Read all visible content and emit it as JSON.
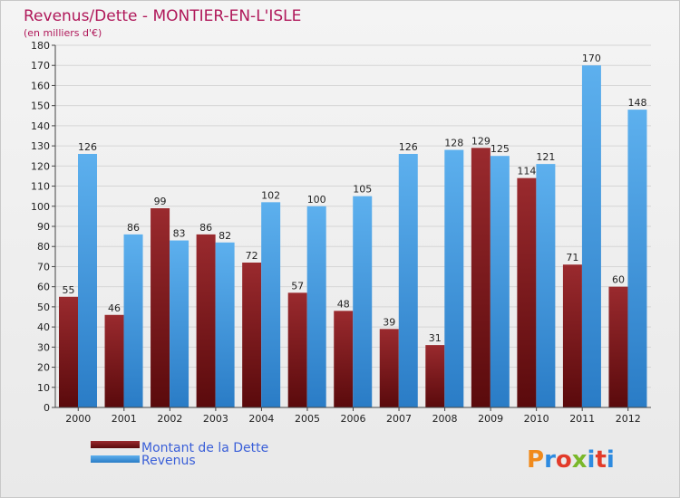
{
  "chart_data": {
    "type": "bar",
    "title": "Revenus/Dette - MONTIER-EN-L'ISLE",
    "subtitle": "(en milliers d'€)",
    "categories": [
      "2000",
      "2001",
      "2002",
      "2003",
      "2004",
      "2005",
      "2006",
      "2007",
      "2008",
      "2009",
      "2010",
      "2011",
      "2012"
    ],
    "series": [
      {
        "name": "Montant de la Dette",
        "color": "#7a1a1c",
        "values": [
          55,
          46,
          99,
          86,
          72,
          57,
          48,
          39,
          31,
          129,
          114,
          71,
          60
        ]
      },
      {
        "name": "Revenus",
        "color": "#4aa0e6",
        "values": [
          126,
          86,
          83,
          82,
          102,
          100,
          105,
          126,
          128,
          125,
          121,
          170,
          148
        ]
      }
    ],
    "ylim": [
      0,
      180
    ],
    "yticks": [
      0,
      10,
      20,
      30,
      40,
      50,
      60,
      70,
      80,
      90,
      100,
      110,
      120,
      130,
      140,
      150,
      160,
      170,
      180
    ],
    "grid": true,
    "legend_position": "bottom-left"
  },
  "brand": {
    "text": "Proxiti",
    "colors": [
      "#f08a1c",
      "#2e8be0",
      "#e23b2a",
      "#7ab82a",
      "#2e8be0",
      "#e23b2a",
      "#2e8be0"
    ]
  }
}
